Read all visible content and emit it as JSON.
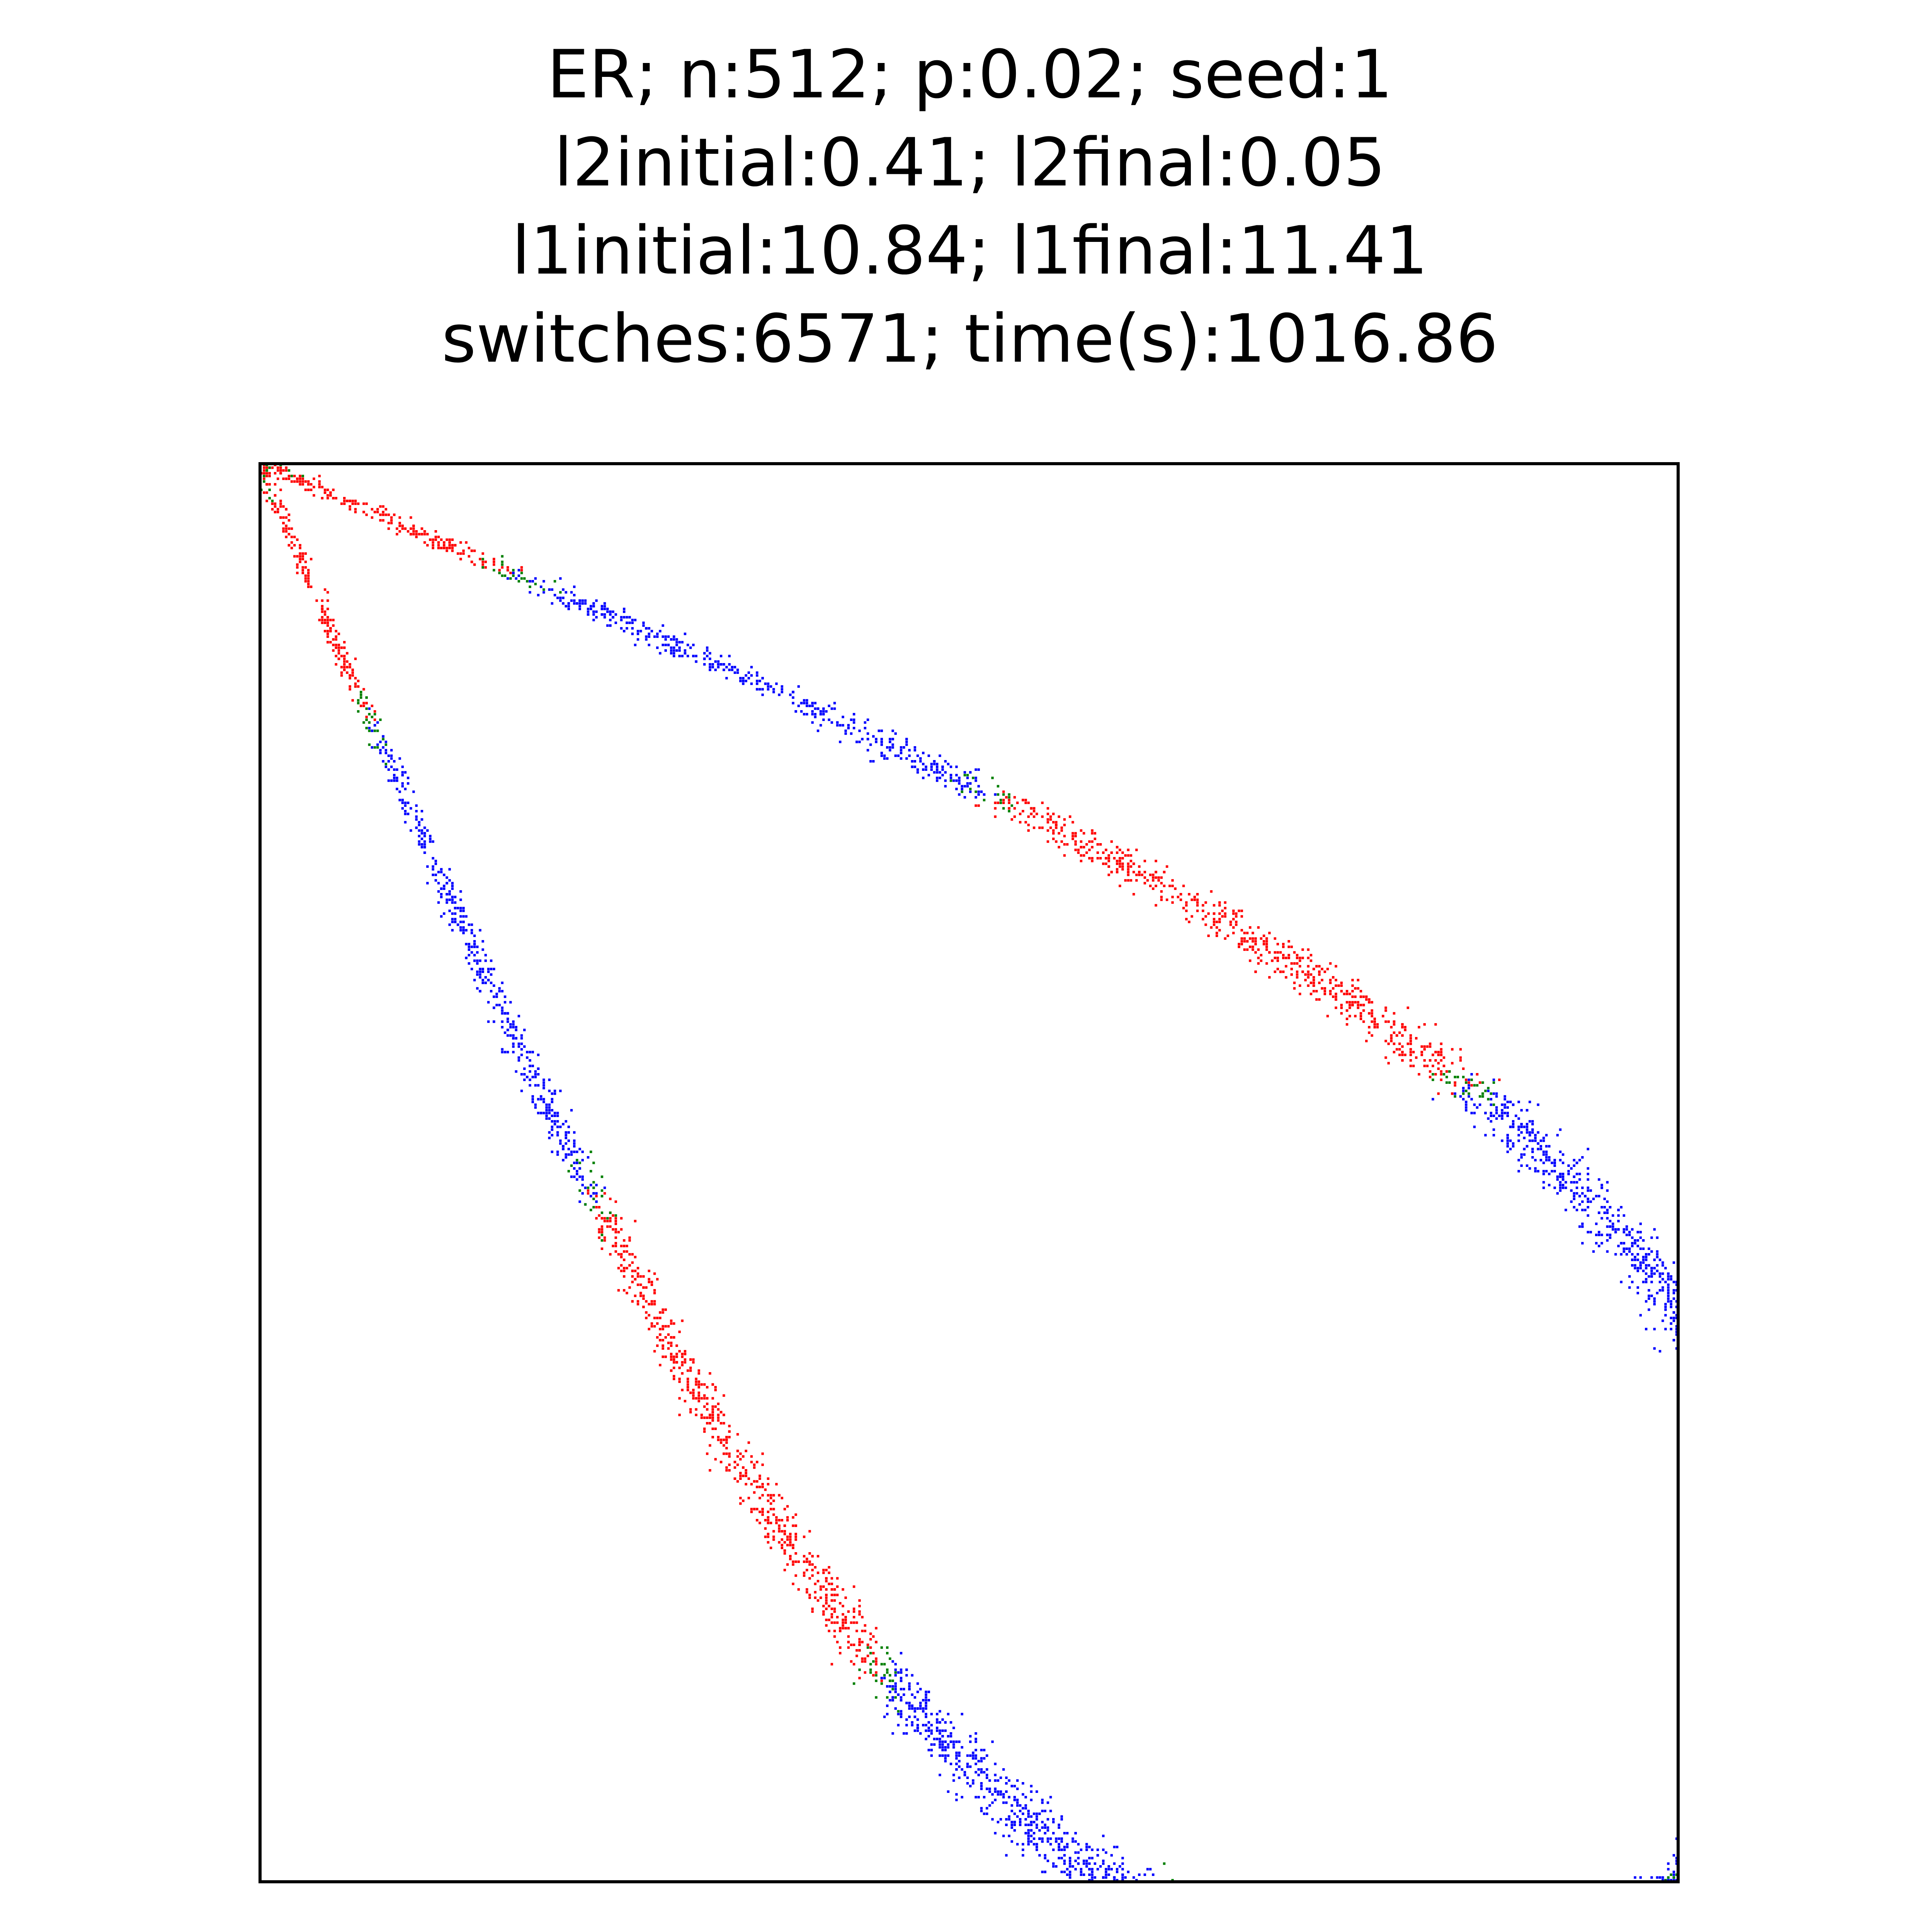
{
  "chart_data": {
    "type": "scatter",
    "title_lines": [
      "ER; n:512; p:0.02; seed:1",
      "l2initial:0.41; l2final:0.05",
      "l1initial:10.84; l1final:11.41",
      "switches:6571; time(s):1016.86"
    ],
    "xlim": [
      0,
      512
    ],
    "ylim": [
      512,
      0
    ],
    "axis_ticks": false,
    "grid": false,
    "legend": "none",
    "colors": {
      "red": "#ff0000",
      "blue": "#0000ff",
      "green": "#008000",
      "frame": "#000000"
    },
    "description": "Adjacency matrix spy plot: entries lie on a lens-shaped band; band segments alternate red/blue with green entries at the transitions",
    "series": [
      {
        "color": "red",
        "segments": [
          {
            "arc": "upper",
            "from": 0,
            "to": 40
          },
          {
            "arc": "upper",
            "from": 120,
            "to": 225
          },
          {
            "arc": "upper",
            "from": 325,
            "to": 415
          },
          {
            "arc": "lower",
            "from": 0,
            "to": 40
          },
          {
            "arc": "lower",
            "from": 120,
            "to": 225
          },
          {
            "arc": "lower",
            "from": 325,
            "to": 415
          }
        ]
      },
      {
        "color": "blue",
        "segments": [
          {
            "arc": "upper",
            "from": 40,
            "to": 120
          },
          {
            "arc": "upper",
            "from": 225,
            "to": 325
          },
          {
            "arc": "upper",
            "from": 415,
            "to": 512
          },
          {
            "arc": "lower",
            "from": 40,
            "to": 120
          },
          {
            "arc": "lower",
            "from": 225,
            "to": 325
          },
          {
            "arc": "lower",
            "from": 415,
            "to": 512
          }
        ]
      },
      {
        "color": "green",
        "transition_points": [
          0,
          40,
          120,
          225,
          325,
          415,
          512
        ]
      }
    ],
    "approx_points_per_arc": 3300
  }
}
